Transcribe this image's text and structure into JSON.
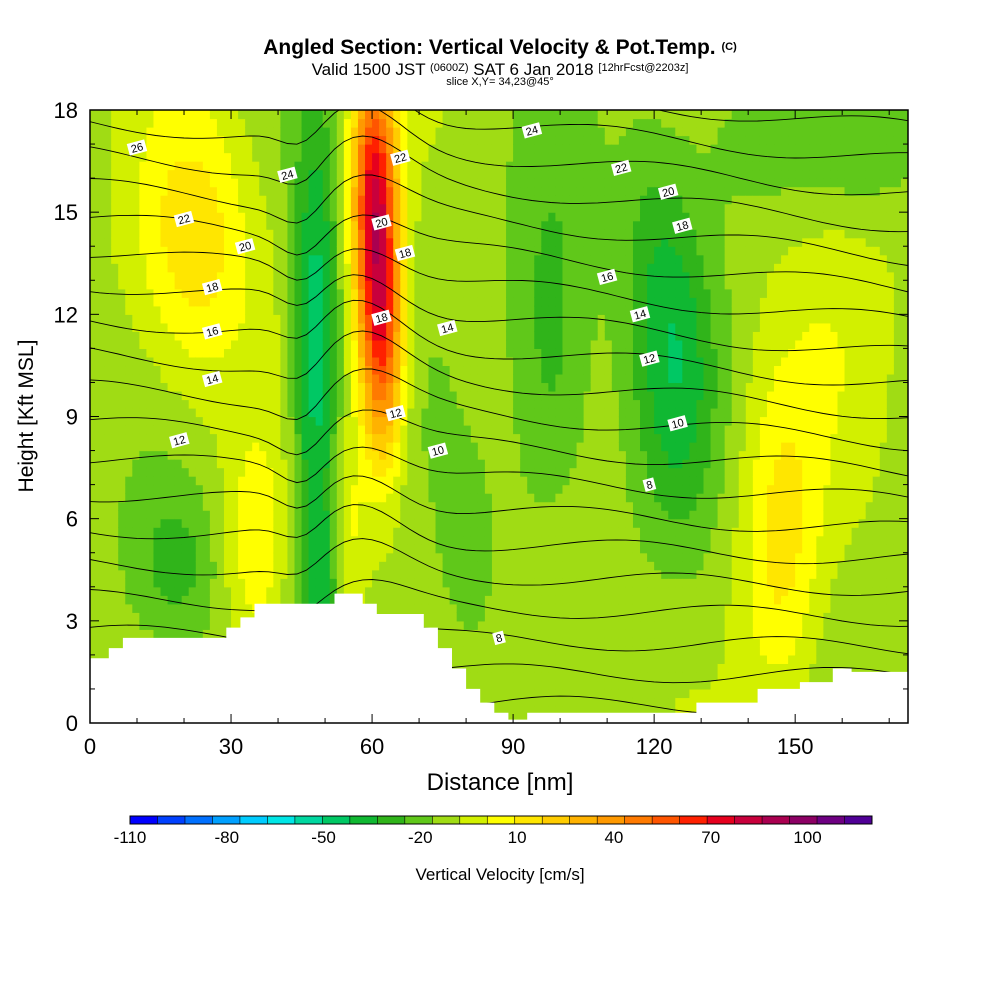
{
  "title": {
    "main": "Angled Section: Vertical Velocity & Pot.Temp.",
    "main_suffix": "(C)",
    "valid_prefix": "Valid 1500 JST",
    "valid_small1": "(0600Z)",
    "valid_mid": "SAT 6 Jan 2018",
    "valid_small2": "[12hrFcst@2203z]",
    "slice": "slice X,Y= 34,23@45°"
  },
  "chart_data": {
    "type": "heatmap",
    "xlabel": "Distance [nm]",
    "ylabel": "Height [Kft MSL]",
    "xlim": [
      0,
      174
    ],
    "ylim": [
      0,
      18
    ],
    "x_ticks": [
      0,
      30,
      60,
      90,
      120,
      150
    ],
    "y_ticks": [
      0,
      3,
      6,
      9,
      12,
      15,
      18
    ],
    "colorbar": {
      "label": "Vertical Velocity [cm/s]",
      "min": -110,
      "max": 120,
      "step": 10,
      "tick_labels": [
        "-110",
        "-80",
        "-50",
        "-20",
        "10",
        "40",
        "70",
        "100"
      ],
      "tick_values": [
        -110,
        -80,
        -50,
        -20,
        10,
        40,
        70,
        100
      ],
      "colors": [
        "#0000ff",
        "#0040ff",
        "#0070ff",
        "#00a0ff",
        "#00ccff",
        "#00e6e6",
        "#00d7a0",
        "#00c864",
        "#10b832",
        "#30b41a",
        "#60c81a",
        "#a0dc14",
        "#d2f000",
        "#ffff00",
        "#ffe600",
        "#ffcc00",
        "#ffb200",
        "#ff9900",
        "#ff7a00",
        "#ff5500",
        "#ff2000",
        "#e6001e",
        "#c8003c",
        "#aa0050",
        "#8c0064",
        "#6e0082",
        "#500096"
      ]
    },
    "terrain_kft": [
      [
        0,
        1.9
      ],
      [
        4,
        1.9
      ],
      [
        4,
        2.2
      ],
      [
        7,
        2.2
      ],
      [
        7,
        2.5
      ],
      [
        29,
        2.5
      ],
      [
        29,
        2.8
      ],
      [
        32,
        2.8
      ],
      [
        32,
        3.1
      ],
      [
        35,
        3.1
      ],
      [
        35,
        3.5
      ],
      [
        52,
        3.5
      ],
      [
        52,
        3.8
      ],
      [
        58,
        3.8
      ],
      [
        58,
        3.5
      ],
      [
        61,
        3.5
      ],
      [
        61,
        3.2
      ],
      [
        71,
        3.2
      ],
      [
        71,
        2.8
      ],
      [
        74,
        2.8
      ],
      [
        74,
        2.2
      ],
      [
        77,
        2.2
      ],
      [
        77,
        1.6
      ],
      [
        80,
        1.6
      ],
      [
        80,
        1.0
      ],
      [
        83,
        1.0
      ],
      [
        83,
        0.6
      ],
      [
        86,
        0.6
      ],
      [
        86,
        0.3
      ],
      [
        89,
        0.3
      ],
      [
        89,
        0.1
      ],
      [
        93,
        0.1
      ],
      [
        93,
        0.3
      ],
      [
        129,
        0.3
      ],
      [
        129,
        0.6
      ],
      [
        142,
        0.6
      ],
      [
        142,
        1.0
      ],
      [
        151,
        1.0
      ],
      [
        151,
        1.2
      ],
      [
        158,
        1.2
      ],
      [
        158,
        1.6
      ],
      [
        162,
        1.6
      ],
      [
        162,
        1.5
      ],
      [
        174,
        1.5
      ]
    ],
    "velocity_features": [
      {
        "x": 61,
        "y": 13.5,
        "sx": 3.3,
        "sy": 3.2,
        "v": 80
      },
      {
        "x": 63,
        "y": 10.5,
        "sx": 3.0,
        "sy": 2.5,
        "v": 40
      },
      {
        "x": 60,
        "y": 16.5,
        "sx": 3.5,
        "sy": 2.5,
        "v": 45
      },
      {
        "x": 22,
        "y": 14,
        "sx": 9,
        "sy": 3.0,
        "v": 32
      },
      {
        "x": 35,
        "y": 5,
        "sx": 5,
        "sy": 2.5,
        "v": 22
      },
      {
        "x": 54,
        "y": 5.5,
        "sx": 3,
        "sy": 2.0,
        "v": 25
      },
      {
        "x": 48,
        "y": 11,
        "sx": 3.5,
        "sy": 4.5,
        "v": -45
      },
      {
        "x": 50,
        "y": 4.5,
        "sx": 3.5,
        "sy": 2.0,
        "v": -25
      },
      {
        "x": 18,
        "y": 4.5,
        "sx": 7,
        "sy": 1.8,
        "v": -20
      },
      {
        "x": 98,
        "y": 11,
        "sx": 6,
        "sy": 4.0,
        "v": -22
      },
      {
        "x": 125,
        "y": 10,
        "sx": 6,
        "sy": 3.5,
        "v": -25
      },
      {
        "x": 120,
        "y": 14,
        "sx": 6,
        "sy": 3.0,
        "v": -15
      },
      {
        "x": 100,
        "y": 3,
        "sx": 5,
        "sy": 2.5,
        "v": 10
      },
      {
        "x": 147,
        "y": 5,
        "sx": 6,
        "sy": 3.5,
        "v": 28
      },
      {
        "x": 160,
        "y": 12,
        "sx": 10,
        "sy": 4.0,
        "v": 10
      },
      {
        "x": 165,
        "y": 17,
        "sx": 10,
        "sy": 1.5,
        "v": -15
      },
      {
        "x": 140,
        "y": 17,
        "sx": 8,
        "sy": 1.5,
        "v": -10
      },
      {
        "x": 80,
        "y": 5,
        "sx": 4,
        "sy": 2.0,
        "v": -12
      }
    ],
    "contour_labels": [
      {
        "text": "26",
        "x": 10,
        "y": 16.9
      },
      {
        "text": "24",
        "x": 42,
        "y": 16.1
      },
      {
        "text": "22",
        "x": 66,
        "y": 16.6
      },
      {
        "text": "24",
        "x": 94,
        "y": 17.4
      },
      {
        "text": "22",
        "x": 113,
        "y": 16.3
      },
      {
        "text": "20",
        "x": 123,
        "y": 15.6
      },
      {
        "text": "22",
        "x": 20,
        "y": 14.8
      },
      {
        "text": "20",
        "x": 62,
        "y": 14.7
      },
      {
        "text": "18",
        "x": 126,
        "y": 14.6
      },
      {
        "text": "20",
        "x": 33,
        "y": 14.0
      },
      {
        "text": "18",
        "x": 67,
        "y": 13.8
      },
      {
        "text": "18",
        "x": 26,
        "y": 12.8
      },
      {
        "text": "16",
        "x": 110,
        "y": 13.1
      },
      {
        "text": "16",
        "x": 26,
        "y": 11.5
      },
      {
        "text": "18",
        "x": 62,
        "y": 11.9
      },
      {
        "text": "14",
        "x": 76,
        "y": 11.6
      },
      {
        "text": "14",
        "x": 117,
        "y": 12.0
      },
      {
        "text": "12",
        "x": 119,
        "y": 10.7
      },
      {
        "text": "14",
        "x": 26,
        "y": 10.1
      },
      {
        "text": "12",
        "x": 65,
        "y": 9.1
      },
      {
        "text": "10",
        "x": 125,
        "y": 8.8
      },
      {
        "text": "12",
        "x": 19,
        "y": 8.3
      },
      {
        "text": "10",
        "x": 74,
        "y": 8.0
      },
      {
        "text": "8",
        "x": 119,
        "y": 7.0
      },
      {
        "text": "8",
        "x": 87,
        "y": 2.5
      }
    ]
  }
}
